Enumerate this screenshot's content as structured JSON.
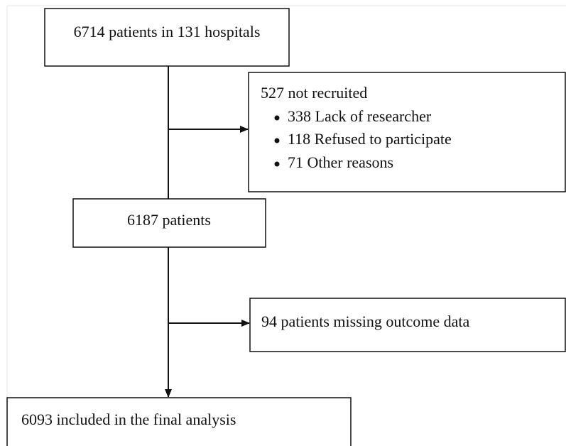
{
  "nodes": [
    {
      "label": "6714 patients in 131 hospitals"
    },
    {
      "label": "527 not recruited",
      "items": [
        "338 Lack of researcher",
        "118 Refused to participate",
        "71 Other reasons"
      ]
    },
    {
      "label": "6187 patients"
    },
    {
      "label": "94 patients missing outcome data"
    },
    {
      "label": "6093 included in the final analysis"
    }
  ]
}
